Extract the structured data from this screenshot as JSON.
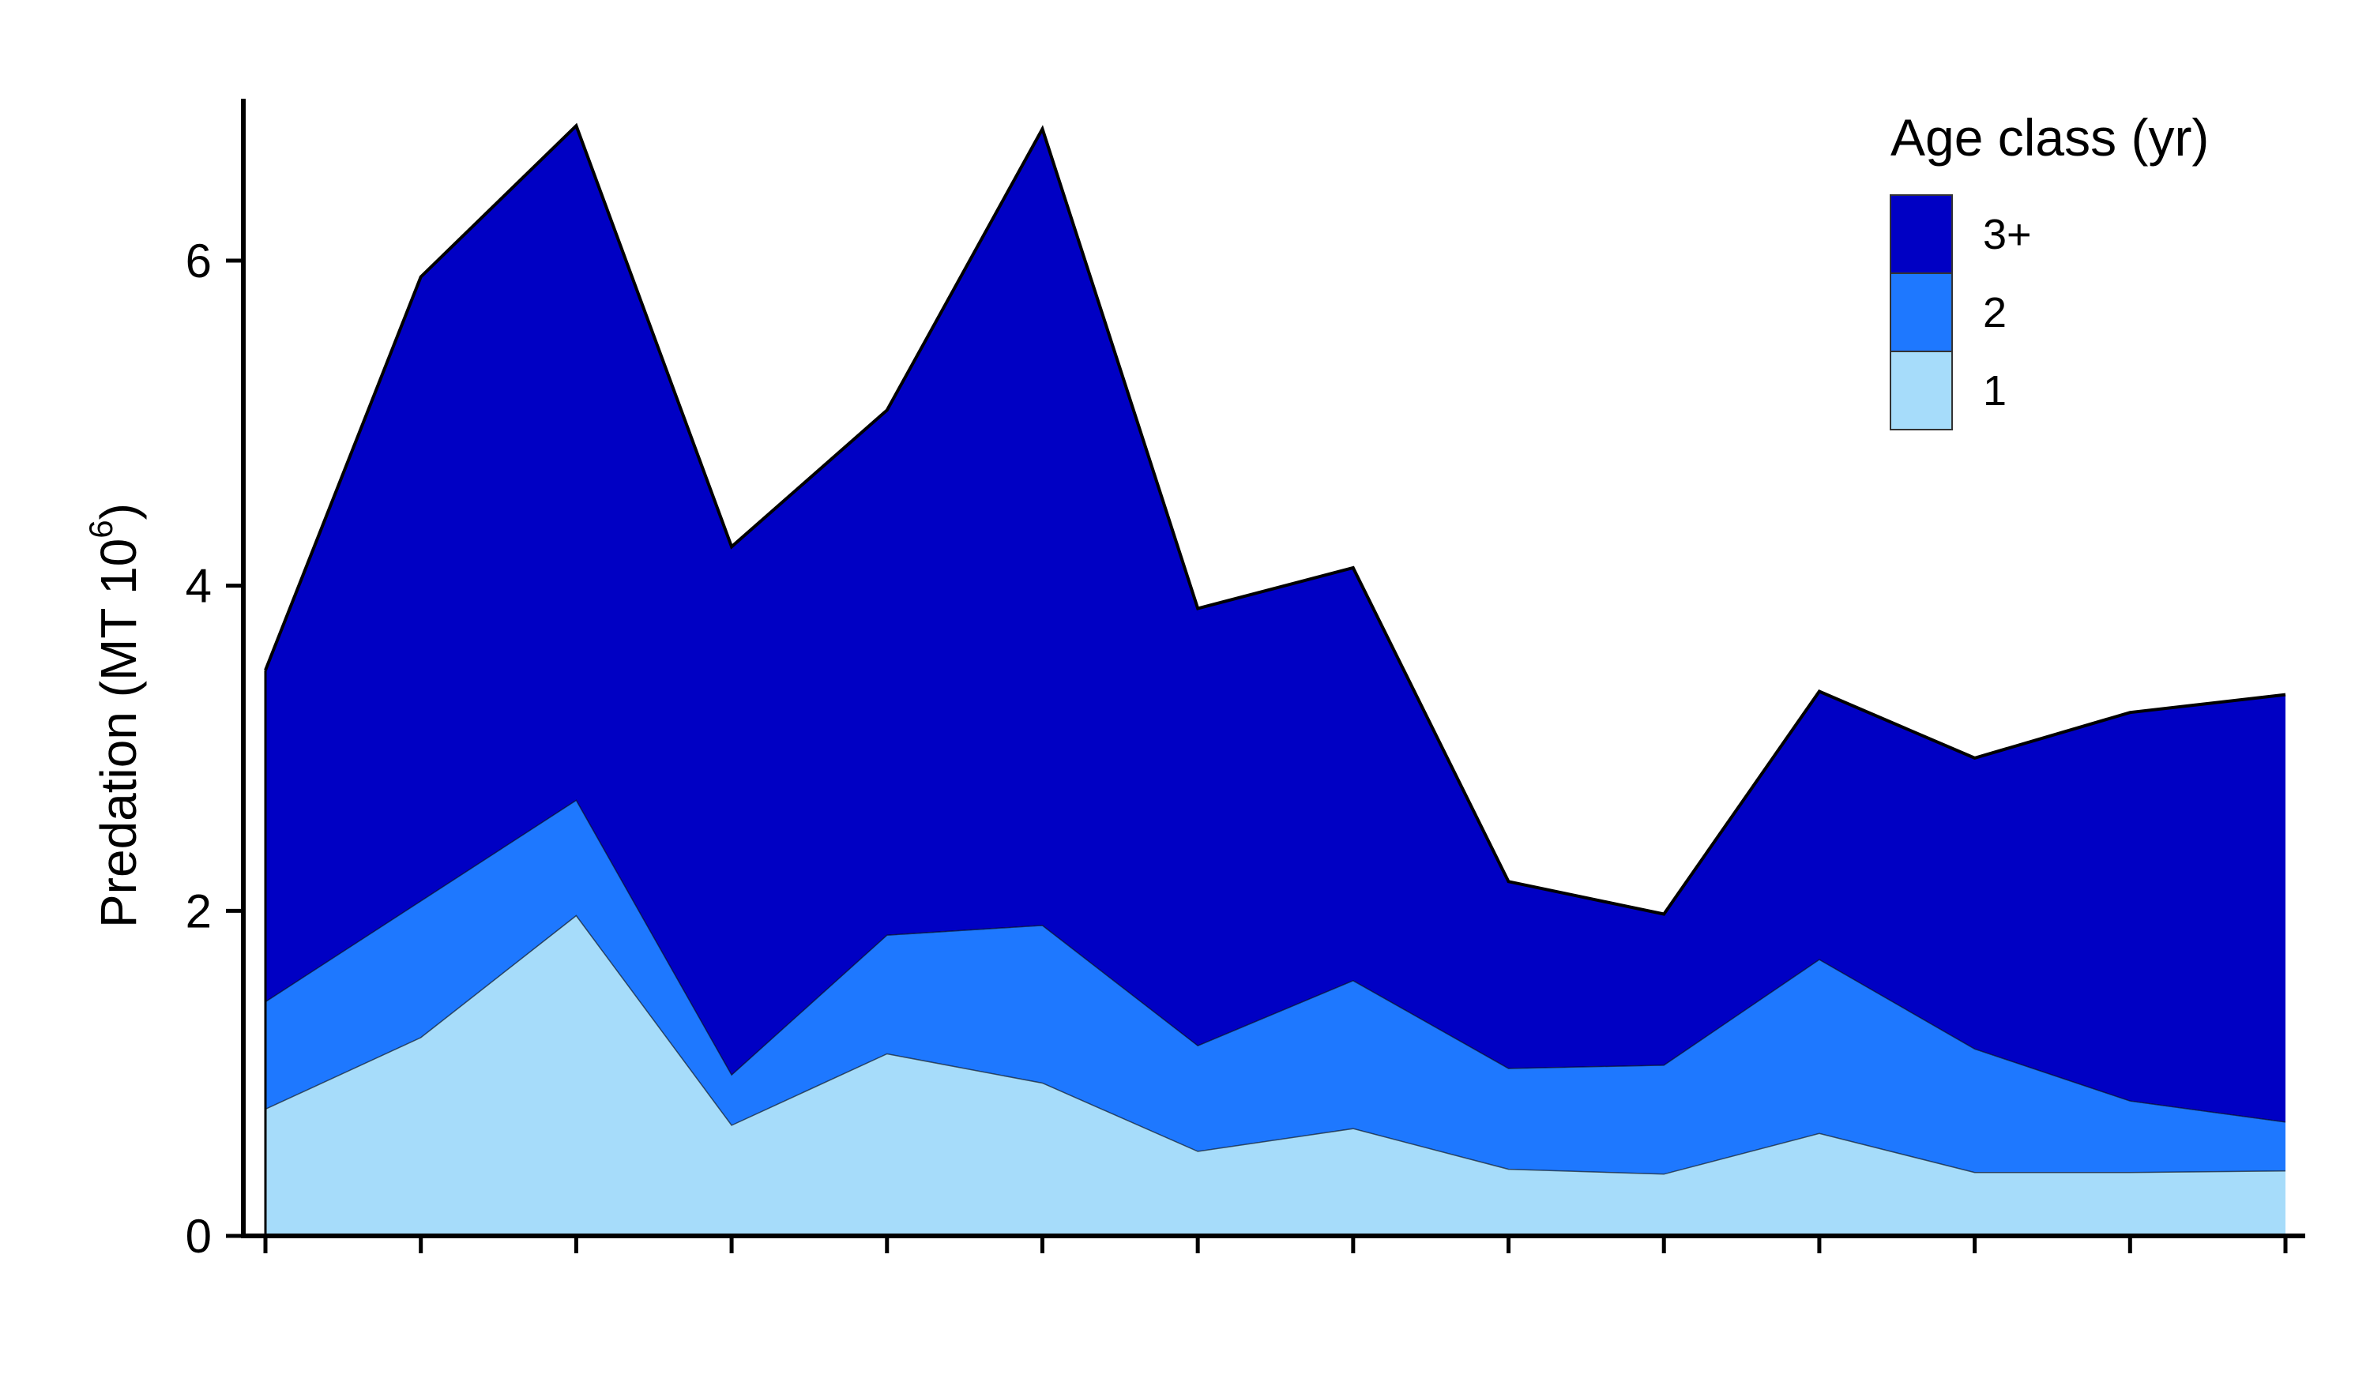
{
  "chart_data": {
    "type": "area",
    "stacked": true,
    "x": [
      1,
      2,
      3,
      4,
      5,
      6,
      7,
      8,
      9,
      10,
      11,
      12,
      13,
      14
    ],
    "series": [
      {
        "name": "1",
        "color": "#a6dcfa",
        "values": [
          0.78,
          1.22,
          1.97,
          0.68,
          1.12,
          0.94,
          0.52,
          0.66,
          0.41,
          0.38,
          0.63,
          0.39,
          0.39,
          0.4
        ]
      },
      {
        "name": "2",
        "color": "#1e78ff",
        "values": [
          0.66,
          0.84,
          0.71,
          0.31,
          0.73,
          0.97,
          0.65,
          0.91,
          0.62,
          0.67,
          1.07,
          0.76,
          0.44,
          0.3
        ]
      },
      {
        "name": "3+",
        "color": "#0000c4",
        "values": [
          2.04,
          3.84,
          4.15,
          3.25,
          3.23,
          4.9,
          2.69,
          2.54,
          1.15,
          0.93,
          1.65,
          1.79,
          2.39,
          2.63
        ]
      }
    ],
    "ylabel": "Predation (MT 10",
    "ylabel_sup": "6",
    "ylabel_close": ")",
    "yticks": [
      "0",
      "2",
      "4",
      "6"
    ],
    "ylim": [
      0,
      7
    ],
    "legend": {
      "title": "Age class (yr)",
      "position": "top-right",
      "entries": [
        "3+",
        "2",
        "1"
      ]
    },
    "grid": false
  }
}
